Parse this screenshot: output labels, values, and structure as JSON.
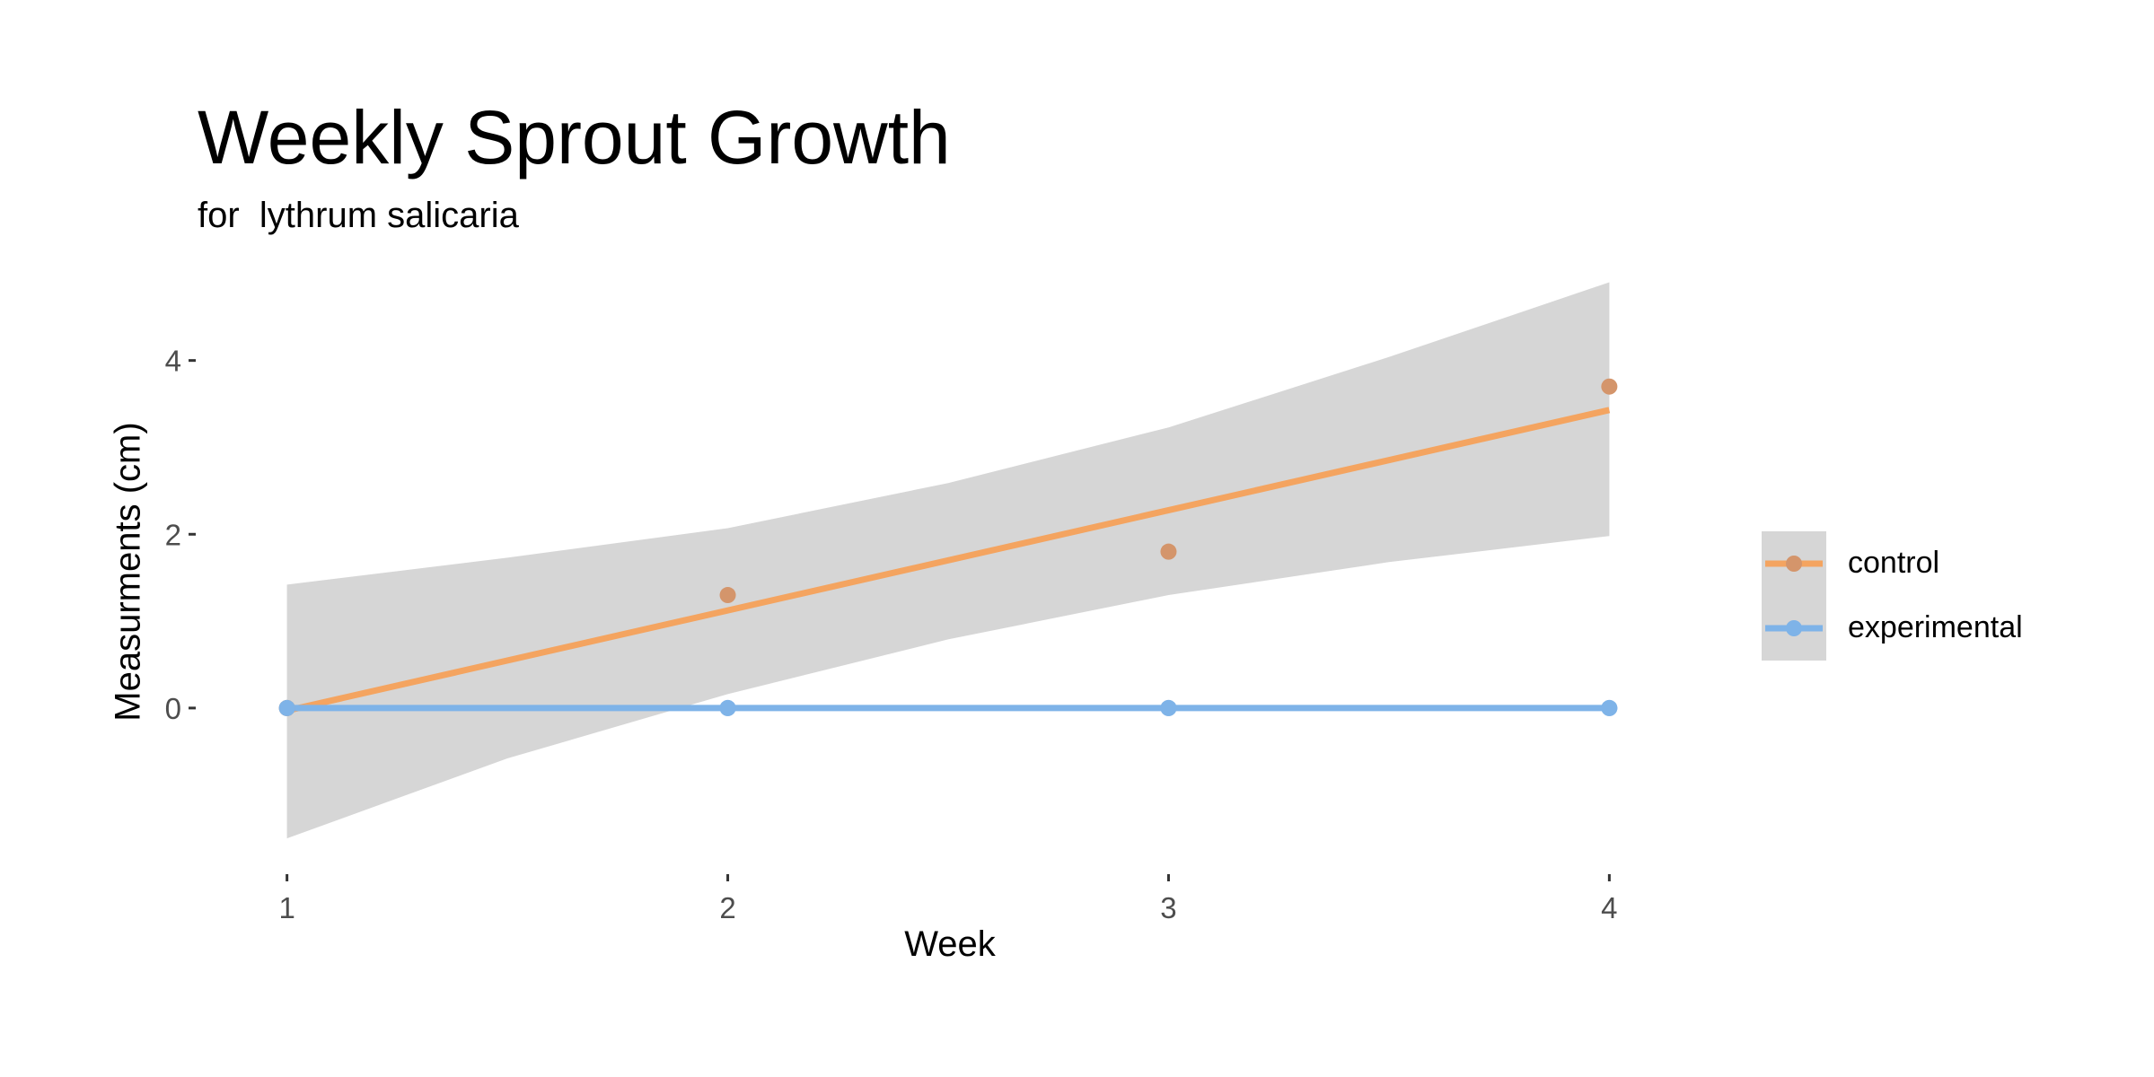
{
  "chart_data": {
    "type": "line",
    "title": "Weekly Sprout Growth",
    "subtitle": "for  lythrum salicaria",
    "xlabel": "Week",
    "ylabel": "Measurments (cm)",
    "xlim": [
      0.85,
      4.15
    ],
    "ylim": [
      -1.85,
      5.05
    ],
    "x_ticks": [
      1,
      2,
      3,
      4
    ],
    "y_ticks": [
      0,
      2,
      4
    ],
    "grid": false,
    "legend_position": "right",
    "series": [
      {
        "name": "control",
        "color": "#f4a460",
        "point_color": "#d4956b",
        "points": [
          {
            "x": 1,
            "y": 0
          },
          {
            "x": 2,
            "y": 1.3
          },
          {
            "x": 3,
            "y": 1.8
          },
          {
            "x": 4,
            "y": 3.7
          }
        ],
        "fit": {
          "x": [
            1,
            4
          ],
          "y": [
            -0.03,
            3.43
          ]
        },
        "confidence_band": {
          "x": [
            1,
            1.5,
            2,
            2.5,
            3,
            3.5,
            4
          ],
          "lower": [
            -1.5,
            -0.58,
            0.16,
            0.79,
            1.3,
            1.68,
            1.98
          ],
          "upper": [
            1.42,
            1.73,
            2.07,
            2.59,
            3.23,
            4.04,
            4.9
          ]
        }
      },
      {
        "name": "experimental",
        "color": "#7eb3e8",
        "point_color": "#7eb3e8",
        "points": [
          {
            "x": 1,
            "y": 0
          },
          {
            "x": 2,
            "y": 0
          },
          {
            "x": 3,
            "y": 0
          },
          {
            "x": 4,
            "y": 0
          }
        ],
        "fit": {
          "x": [
            1,
            4
          ],
          "y": [
            0,
            0
          ]
        }
      }
    ]
  }
}
